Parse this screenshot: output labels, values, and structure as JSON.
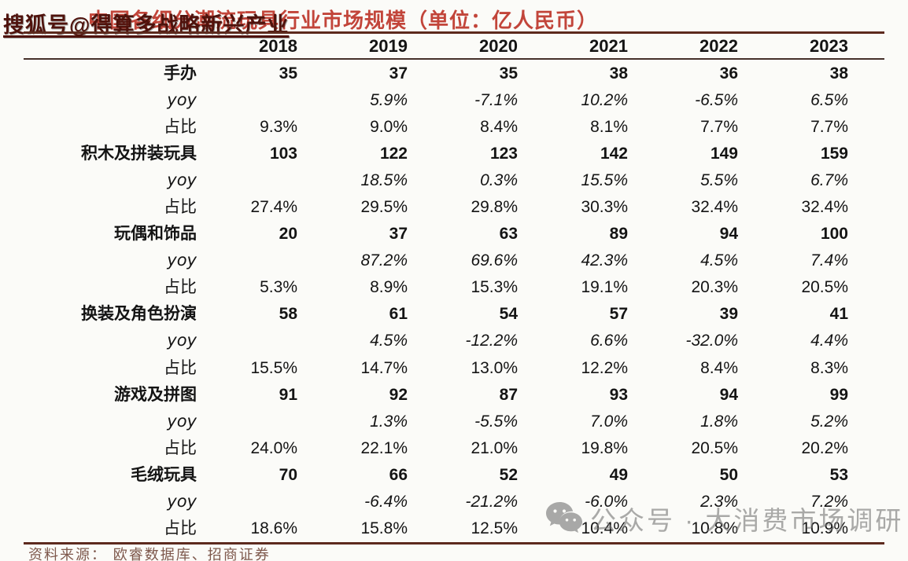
{
  "page": {
    "title": "中国各细分潮流玩具行业市场规模（单位：亿人民币）",
    "watermark_top": "搜狐号@得算多战略新兴产业",
    "watermark_bottom": "公众号 · 大消费市场调研",
    "source": "资料来源： 欧睿数据库、招商证券"
  },
  "colors": {
    "title_red": "#c2453a",
    "table_border_maroon": "#5d2a1e",
    "watermark_maroon": "#4f120c",
    "watermark_gray": "#767676",
    "source_brown": "#7e584c"
  },
  "icons": {
    "wechat_icon": "wechat-icon"
  },
  "chart_data": {
    "type": "table",
    "title": "中国各细分潮流玩具行业市场规模（单位：亿人民币）",
    "unit": "亿人民币",
    "years": [
      "2018",
      "2019",
      "2020",
      "2021",
      "2022",
      "2023"
    ],
    "row_labels": {
      "yoy": "yoy",
      "share": "占比"
    },
    "groups": [
      {
        "name": "手办",
        "values": [
          "35",
          "37",
          "35",
          "38",
          "36",
          "38"
        ],
        "yoy": [
          "",
          "5.9%",
          "-7.1%",
          "10.2%",
          "-6.5%",
          "6.5%"
        ],
        "share": [
          "9.3%",
          "9.0%",
          "8.4%",
          "8.1%",
          "7.7%",
          "7.7%"
        ]
      },
      {
        "name": "积木及拼装玩具",
        "values": [
          "103",
          "122",
          "123",
          "142",
          "149",
          "159"
        ],
        "yoy": [
          "",
          "18.5%",
          "0.3%",
          "15.5%",
          "5.5%",
          "6.7%"
        ],
        "share": [
          "27.4%",
          "29.5%",
          "29.8%",
          "30.3%",
          "32.4%",
          "32.4%"
        ]
      },
      {
        "name": "玩偶和饰品",
        "values": [
          "20",
          "37",
          "63",
          "89",
          "94",
          "100"
        ],
        "yoy": [
          "",
          "87.2%",
          "69.6%",
          "42.3%",
          "4.5%",
          "7.4%"
        ],
        "share": [
          "5.3%",
          "8.9%",
          "15.3%",
          "19.1%",
          "20.3%",
          "20.5%"
        ]
      },
      {
        "name": "换装及角色扮演",
        "values": [
          "58",
          "61",
          "54",
          "57",
          "39",
          "41"
        ],
        "yoy": [
          "",
          "4.5%",
          "-12.2%",
          "6.6%",
          "-32.0%",
          "4.4%"
        ],
        "share": [
          "15.5%",
          "14.7%",
          "13.0%",
          "12.2%",
          "8.4%",
          "8.3%"
        ]
      },
      {
        "name": "游戏及拼图",
        "values": [
          "91",
          "92",
          "87",
          "93",
          "94",
          "99"
        ],
        "yoy": [
          "",
          "1.3%",
          "-5.5%",
          "7.0%",
          "1.8%",
          "5.2%"
        ],
        "share": [
          "24.0%",
          "22.1%",
          "21.0%",
          "19.8%",
          "20.5%",
          "20.2%"
        ]
      },
      {
        "name": "毛绒玩具",
        "values": [
          "70",
          "66",
          "52",
          "49",
          "50",
          "53"
        ],
        "yoy": [
          "",
          "-6.4%",
          "-21.2%",
          "-6.0%",
          "2.3%",
          "7.2%"
        ],
        "share": [
          "18.6%",
          "15.8%",
          "12.5%",
          "10.4%",
          "10.8%",
          "10.9%"
        ]
      }
    ]
  }
}
